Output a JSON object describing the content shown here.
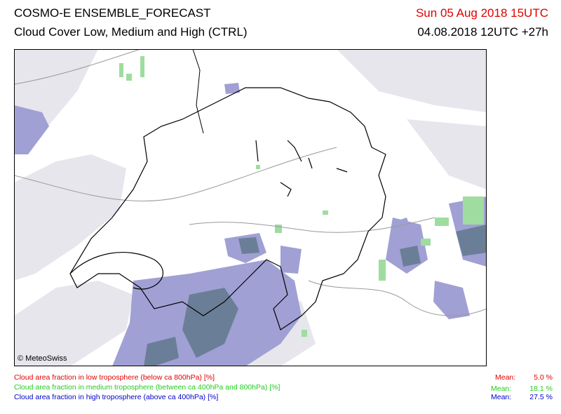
{
  "header": {
    "title": "COSMO-E ENSEMBLE_FORECAST",
    "subtitle": "Cloud Cover Low, Medium and High (CTRL)",
    "valid_time": "Sun 05 Aug 2018 15UTC",
    "run_time": "04.08.2018 12UTC +27h"
  },
  "map": {
    "copyright": "© MeteoSwiss"
  },
  "legend": [
    {
      "label": "Cloud area fraction in low troposphere (below ca 800hPa) [%]",
      "mean_label": "Mean:",
      "mean": "5.0 %"
    },
    {
      "label": "Cloud area fraction in medium troposphere (between ca 400hPa and 800hPa) [%]",
      "mean_label": "Mean:",
      "mean": "18.1 %"
    },
    {
      "label": "Cloud area fraction in high troposphere (above ca 400hPa) [%]",
      "mean_label": "Mean:",
      "mean": "27.5 %"
    }
  ]
}
